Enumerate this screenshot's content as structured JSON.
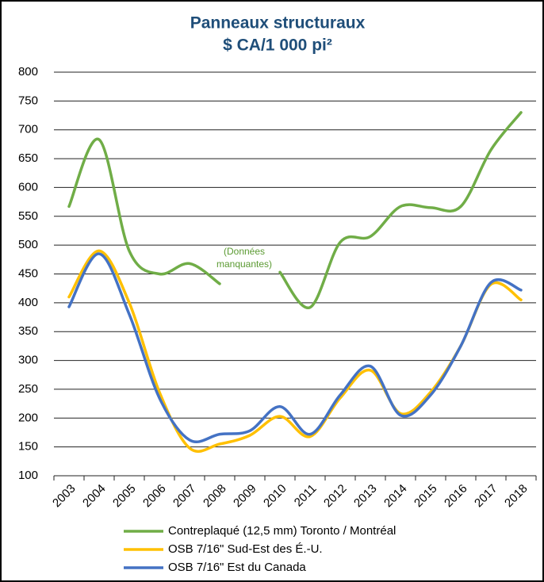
{
  "chart_data": {
    "type": "line",
    "title": "Panneaux structuraux",
    "subtitle": "$ CA/1 000 pi²",
    "annotation": [
      "(Données",
      "manquantes)"
    ],
    "categories": [
      "2003",
      "2004",
      "2005",
      "2006",
      "2007",
      "2008",
      "2009",
      "2010",
      "2011",
      "2012",
      "2013",
      "2014",
      "2015",
      "2016",
      "2017",
      "2018"
    ],
    "series": [
      {
        "name": "Contreplaqué (12,5 mm) Toronto / Montréal",
        "color": "#70ad47",
        "values": [
          567,
          683,
          490,
          450,
          468,
          433,
          null,
          453,
          392,
          505,
          515,
          567,
          565,
          567,
          665,
          730
        ]
      },
      {
        "name": "OSB 7/16\" Sud-Est des É.-U.",
        "color": "#ffc000",
        "values": [
          410,
          490,
          400,
          245,
          148,
          155,
          170,
          203,
          168,
          235,
          283,
          208,
          245,
          325,
          432,
          405
        ]
      },
      {
        "name": "OSB 7/16\" Est du Canada",
        "color": "#4472c4",
        "values": [
          393,
          485,
          380,
          235,
          162,
          172,
          178,
          220,
          172,
          240,
          290,
          205,
          240,
          325,
          435,
          422
        ]
      }
    ],
    "ylim": [
      100,
      800
    ],
    "yticks": [
      100,
      150,
      200,
      250,
      300,
      350,
      400,
      450,
      500,
      550,
      600,
      650,
      700,
      750,
      800
    ],
    "grid": true
  }
}
